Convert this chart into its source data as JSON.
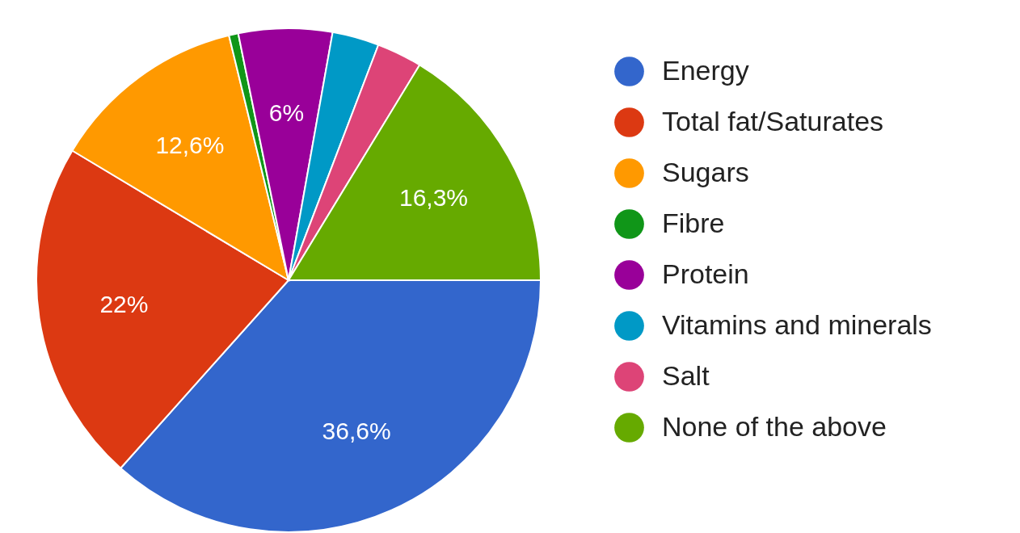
{
  "chart_data": {
    "type": "pie",
    "categories": [
      "Energy",
      "Total fat/Saturates",
      "Sugars",
      "Fibre",
      "Protein",
      "Vitamins and minerals",
      "Salt",
      "None of the above"
    ],
    "values": [
      36.6,
      22,
      12.6,
      0.6,
      6,
      3,
      2.9,
      16.3
    ],
    "colors": [
      "#3366cc",
      "#dc3912",
      "#ff9900",
      "#109618",
      "#990099",
      "#0099c6",
      "#dd4477",
      "#66aa00"
    ],
    "value_labels": [
      "36,6%",
      "22%",
      "12,6%",
      null,
      "6%",
      null,
      null,
      "16,3%"
    ],
    "legend": "right"
  }
}
